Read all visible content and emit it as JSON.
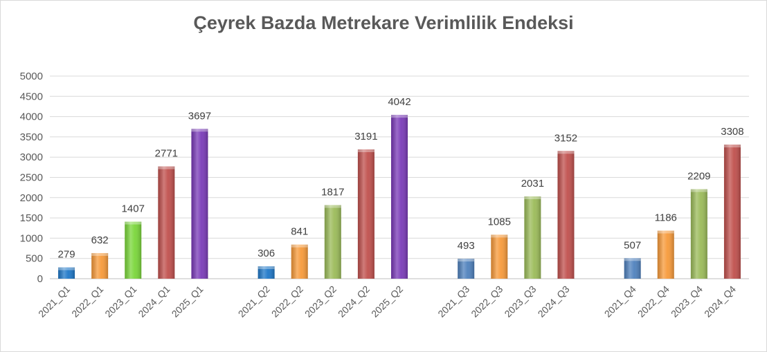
{
  "chart_data": {
    "type": "bar",
    "title": "Çeyrek Bazda Metrekare Verimlilik Endeksi",
    "ylim": [
      0,
      5000
    ],
    "yticks": [
      0,
      500,
      1000,
      1500,
      2000,
      2500,
      3000,
      3500,
      4000,
      4500,
      5000
    ],
    "grid": true,
    "groups": [
      {
        "bars": [
          {
            "label": "2021_Q1",
            "value": 279,
            "color": "#1f78c8"
          },
          {
            "label": "2022_Q1",
            "value": 632,
            "color": "#f79a3a"
          },
          {
            "label": "2023_Q1",
            "value": 1407,
            "color": "#7ad63a"
          },
          {
            "label": "2024_Q1",
            "value": 2771,
            "color": "#c0504d"
          },
          {
            "label": "2025_Q1",
            "value": 3697,
            "color": "#7a3bb8"
          }
        ]
      },
      {
        "bars": [
          {
            "label": "2021_Q2",
            "value": 306,
            "color": "#1f78c8"
          },
          {
            "label": "2022_Q2",
            "value": 841,
            "color": "#f79a3a"
          },
          {
            "label": "2023_Q2",
            "value": 1817,
            "color": "#9bbb59"
          },
          {
            "label": "2024_Q2",
            "value": 3191,
            "color": "#c0504d"
          },
          {
            "label": "2025_Q2",
            "value": 4042,
            "color": "#7a3bb8"
          }
        ]
      },
      {
        "bars": [
          {
            "label": "2021_Q3",
            "value": 493,
            "color": "#4f81bd"
          },
          {
            "label": "2022_Q3",
            "value": 1085,
            "color": "#f79a3a"
          },
          {
            "label": "2023_Q3",
            "value": 2031,
            "color": "#9bbb59"
          },
          {
            "label": "2024_Q3",
            "value": 3152,
            "color": "#c0504d"
          }
        ]
      },
      {
        "bars": [
          {
            "label": "2021_Q4",
            "value": 507,
            "color": "#4f81bd"
          },
          {
            "label": "2022_Q4",
            "value": 1186,
            "color": "#f79a3a"
          },
          {
            "label": "2023_Q4",
            "value": 2209,
            "color": "#9bbb59"
          },
          {
            "label": "2024_Q4",
            "value": 3308,
            "color": "#c0504d"
          }
        ]
      }
    ]
  }
}
